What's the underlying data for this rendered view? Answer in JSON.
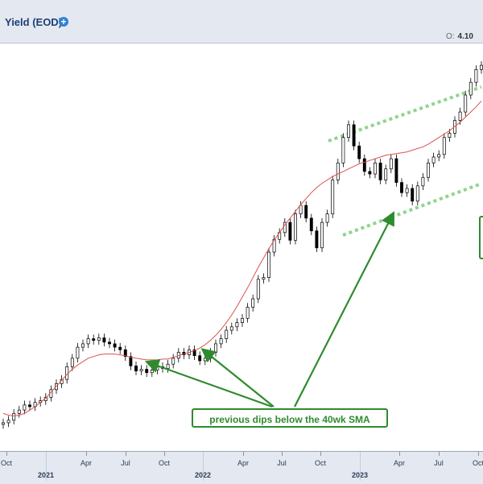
{
  "header": {
    "title": "Yield (EOD)",
    "readout_label": "O:",
    "readout_value": "4.10"
  },
  "callout": {
    "text": "previous dips below the 40wk SMA"
  },
  "colors": {
    "sma": "#d9534f",
    "annotation": "#2e8b2e",
    "channel": "#8fd48f",
    "candle": "#000000"
  },
  "xaxis": {
    "months": [
      "Oct",
      "Apr",
      "Jul",
      "Oct",
      "Apr",
      "Jul",
      "Oct",
      "Apr",
      "Jul",
      "Oct"
    ],
    "years": [
      "2021",
      "2022",
      "2023"
    ]
  },
  "chart_data": {
    "type": "line",
    "title": "Yield (EOD)",
    "xlabel": "",
    "ylabel": "",
    "x_range": [
      "2020-09",
      "2023-11"
    ],
    "price_series": [
      0.69,
      0.72,
      0.8,
      0.84,
      0.9,
      0.88,
      0.93,
      0.95,
      0.99,
      1.08,
      1.15,
      1.2,
      1.35,
      1.45,
      1.58,
      1.62,
      1.68,
      1.66,
      1.69,
      1.64,
      1.62,
      1.58,
      1.55,
      1.47,
      1.36,
      1.3,
      1.32,
      1.28,
      1.31,
      1.35,
      1.33,
      1.38,
      1.45,
      1.52,
      1.49,
      1.55,
      1.48,
      1.42,
      1.45,
      1.52,
      1.62,
      1.68,
      1.78,
      1.82,
      1.87,
      1.92,
      2.05,
      2.15,
      2.38,
      2.4,
      2.7,
      2.85,
      2.93,
      3.05,
      2.84,
      3.15,
      3.25,
      3.1,
      2.95,
      2.75,
      3.05,
      3.15,
      3.55,
      3.75,
      4.05,
      4.2,
      3.95,
      3.8,
      3.65,
      3.62,
      3.75,
      3.55,
      3.68,
      3.8,
      3.52,
      3.4,
      3.45,
      3.3,
      3.48,
      3.58,
      3.75,
      3.82,
      3.85,
      4.05,
      4.1,
      4.25,
      4.35,
      4.55,
      4.7,
      4.85,
      4.9
    ],
    "series": [
      {
        "name": "40wk SMA",
        "values": [
          0.8,
          0.78,
          0.77,
          0.78,
          0.8,
          0.84,
          0.88,
          0.93,
          0.98,
          1.05,
          1.12,
          1.19,
          1.26,
          1.32,
          1.37,
          1.41,
          1.45,
          1.47,
          1.49,
          1.5,
          1.5,
          1.5,
          1.49,
          1.48,
          1.46,
          1.45,
          1.44,
          1.43,
          1.43,
          1.43,
          1.44,
          1.44,
          1.46,
          1.48,
          1.5,
          1.52,
          1.54,
          1.57,
          1.61,
          1.66,
          1.72,
          1.79,
          1.87,
          1.96,
          2.06,
          2.17,
          2.28,
          2.4,
          2.52,
          2.63,
          2.74,
          2.84,
          2.93,
          3.02,
          3.1,
          3.18,
          3.26,
          3.33,
          3.4,
          3.46,
          3.51,
          3.55,
          3.59,
          3.62,
          3.65,
          3.68,
          3.71,
          3.74,
          3.76,
          3.78,
          3.8,
          3.82,
          3.84,
          3.85,
          3.86,
          3.87,
          3.88,
          3.9,
          3.92,
          3.94,
          3.97,
          4.01,
          4.05,
          4.09,
          4.13,
          4.18,
          4.23,
          4.29,
          4.35,
          4.41,
          4.48
        ]
      }
    ],
    "annotations": [
      "previous dips below the 40wk SMA"
    ],
    "grid": false,
    "legend": "none"
  }
}
